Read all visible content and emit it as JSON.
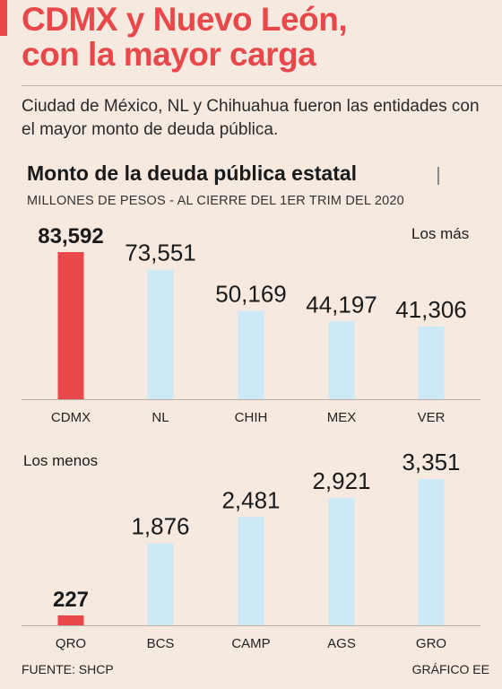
{
  "headline": {
    "line1": "CDMX y Nuevo León,",
    "line2": "con la mayor carga"
  },
  "lede": "Ciudad de México, NL y Chihuahua fueron las entidades con el mayor monto de deuda pública.",
  "chart": {
    "title": "Monto de la deuda pública estatal",
    "subtitle": "MILLONES DE PESOS - AL CIERRE DEL 1ER TRIM DEL 2020"
  },
  "footer": {
    "source": "FUENTE: SHCP",
    "credit": "GRÁFICO EE"
  },
  "colors": {
    "highlight": "#e8484a",
    "bar": "#cde9f7",
    "headline": "#e8484a",
    "background": "#f6e9df"
  },
  "chart_data": [
    {
      "type": "bar",
      "label": "Los más",
      "categories": [
        "CDMX",
        "NL",
        "CHIH",
        "MEX",
        "VER"
      ],
      "values": [
        83592,
        73551,
        50169,
        44197,
        41306
      ],
      "value_labels": [
        "83,592",
        "73,551",
        "50,169",
        "44,197",
        "41,306"
      ],
      "highlight_index": 0,
      "grid": false
    },
    {
      "type": "bar",
      "label": "Los menos",
      "categories": [
        "QRO",
        "BCS",
        "CAMP",
        "AGS",
        "GRO"
      ],
      "values": [
        227,
        1876,
        2481,
        2921,
        3351
      ],
      "value_labels": [
        "227",
        "1,876",
        "2,481",
        "2,921",
        "3,351"
      ],
      "highlight_index": 0,
      "grid": false
    }
  ]
}
